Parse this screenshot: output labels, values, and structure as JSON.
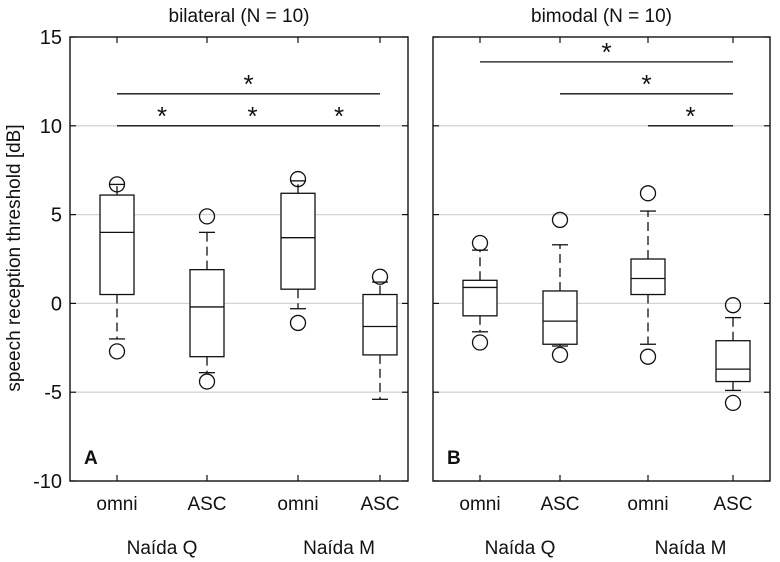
{
  "figure": {
    "ylabel": "speech reception threshold [dB]",
    "yticks": [
      15,
      10,
      5,
      0,
      -5,
      -10
    ],
    "ytick_labels": [
      "15",
      "10",
      "5",
      "0",
      "-5",
      "-10"
    ],
    "gridlines": [
      10,
      5,
      0,
      -5
    ],
    "colors": {
      "axis": "#111111",
      "grid": "#d4d4d4",
      "box": "#111111",
      "background": "#ffffff"
    }
  },
  "chart_data": [
    {
      "type": "box",
      "panel_label": "A",
      "title": "bilateral (N = 10)",
      "ylabel": "speech reception threshold [dB]",
      "ylim": [
        -10,
        15
      ],
      "categories": [
        "omni",
        "ASC",
        "omni",
        "ASC"
      ],
      "groups": [
        {
          "label": "Naída Q",
          "categories": [
            1,
            2
          ]
        },
        {
          "label": "Naída M",
          "categories": [
            3,
            4
          ]
        }
      ],
      "boxes": [
        {
          "category": "omni",
          "whisker_low": -2.0,
          "q1": 0.5,
          "median": 4.0,
          "q3": 6.1,
          "whisker_high": 6.7,
          "outliers": [
            -2.7,
            6.7
          ]
        },
        {
          "category": "ASC",
          "whisker_low": -3.9,
          "q1": -3.0,
          "median": -0.2,
          "q3": 1.9,
          "whisker_high": 4.0,
          "outliers": [
            -4.4,
            4.9
          ]
        },
        {
          "category": "omni",
          "whisker_low": -0.3,
          "q1": 0.8,
          "median": 3.7,
          "q3": 6.2,
          "whisker_high": 6.9,
          "outliers": [
            -1.1,
            7.0
          ]
        },
        {
          "category": "ASC",
          "whisker_low": -5.4,
          "q1": -2.9,
          "median": -1.3,
          "q3": 0.5,
          "whisker_high": 1.2,
          "outliers": [
            1.5
          ]
        }
      ],
      "significance": [
        {
          "from": 1,
          "to": 4,
          "y": 11.8,
          "label": "*"
        },
        {
          "from": 1,
          "to": 2,
          "y": 10.0,
          "label": "*"
        },
        {
          "from": 2,
          "to": 3,
          "y": 10.0,
          "label": "*"
        },
        {
          "from": 3,
          "to": 4,
          "y": 10.0,
          "label": "*"
        }
      ]
    },
    {
      "type": "box",
      "panel_label": "B",
      "title": "bimodal (N = 10)",
      "ylabel": "speech reception threshold [dB]",
      "ylim": [
        -10,
        15
      ],
      "categories": [
        "omni",
        "ASC",
        "omni",
        "ASC"
      ],
      "groups": [
        {
          "label": "Naída Q",
          "categories": [
            1,
            2
          ]
        },
        {
          "label": "Naída M",
          "categories": [
            3,
            4
          ]
        }
      ],
      "boxes": [
        {
          "category": "omni",
          "whisker_low": -1.6,
          "q1": -0.7,
          "median": 0.9,
          "q3": 1.3,
          "whisker_high": 3.0,
          "outliers": [
            -2.2,
            3.4
          ]
        },
        {
          "category": "ASC",
          "whisker_low": -2.4,
          "q1": -2.3,
          "median": -1.0,
          "q3": 0.7,
          "whisker_high": 3.3,
          "outliers": [
            -2.9,
            4.7
          ]
        },
        {
          "category": "omni",
          "whisker_low": -2.3,
          "q1": 0.5,
          "median": 1.4,
          "q3": 2.5,
          "whisker_high": 5.2,
          "outliers": [
            -3.0,
            6.2
          ]
        },
        {
          "category": "ASC",
          "whisker_low": -4.9,
          "q1": -4.4,
          "median": -3.7,
          "q3": -2.1,
          "whisker_high": -0.8,
          "outliers": [
            -5.6,
            -0.1
          ]
        }
      ],
      "significance": [
        {
          "from": 1,
          "to": 4,
          "y": 13.6,
          "label": "*"
        },
        {
          "from": 2,
          "to": 4,
          "y": 11.8,
          "label": "*"
        },
        {
          "from": 3,
          "to": 4,
          "y": 10.0,
          "label": "*"
        }
      ]
    }
  ]
}
